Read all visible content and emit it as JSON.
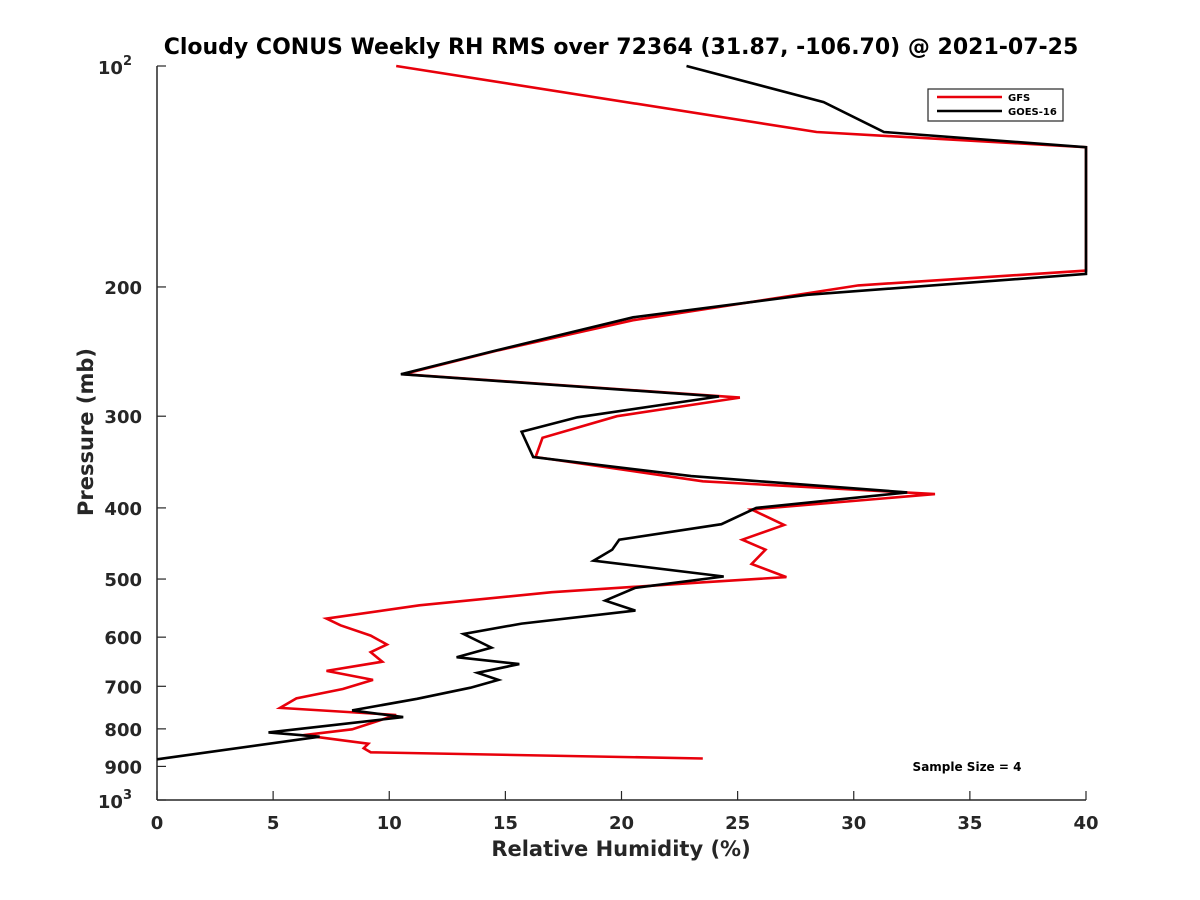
{
  "chart_data": {
    "type": "line",
    "title": "Cloudy CONUS Weekly RH RMS over 72364 (31.87, -106.70) @ 2021-07-25",
    "xlabel": "Relative Humidity (%)",
    "ylabel": "Pressure (mb)",
    "xlim": [
      0,
      40
    ],
    "ylim": [
      1000,
      100
    ],
    "y_scale": "log",
    "y_reversed": true,
    "grid": false,
    "legend_position": "top-right",
    "x_ticks": [
      "0",
      "5",
      "10",
      "15",
      "20",
      "25",
      "30",
      "35",
      "40"
    ],
    "y_ticks": [
      {
        "value": 100,
        "label": "10",
        "sup": "2"
      },
      {
        "value": 200,
        "label": "200"
      },
      {
        "value": 300,
        "label": "300"
      },
      {
        "value": 400,
        "label": "400"
      },
      {
        "value": 500,
        "label": "500"
      },
      {
        "value": 600,
        "label": "600"
      },
      {
        "value": 700,
        "label": "700"
      },
      {
        "value": 800,
        "label": "800"
      },
      {
        "value": 900,
        "label": "900"
      },
      {
        "value": 1000,
        "label": "10",
        "sup": "3"
      }
    ],
    "annotation": "Sample Size = 4",
    "series": [
      {
        "name": "GFS",
        "color": "#e8000b",
        "points": [
          [
            10.3,
            100
          ],
          [
            28.4,
            123
          ],
          [
            40,
            129
          ],
          [
            40,
            190
          ],
          [
            30.2,
            199
          ],
          [
            20.5,
            222
          ],
          [
            14.7,
            244
          ],
          [
            10.6,
            263
          ],
          [
            25.1,
            283
          ],
          [
            19.8,
            300
          ],
          [
            16.6,
            321
          ],
          [
            16.3,
            341
          ],
          [
            23.5,
            368
          ],
          [
            33.5,
            383
          ],
          [
            25.6,
            402
          ],
          [
            27,
            422
          ],
          [
            25.2,
            442
          ],
          [
            26.2,
            456
          ],
          [
            25.6,
            477
          ],
          [
            27.1,
            497
          ],
          [
            23.6,
            505
          ],
          [
            17,
            521
          ],
          [
            11.3,
            543
          ],
          [
            7.3,
            566
          ],
          [
            7.9,
            578
          ],
          [
            9.2,
            597
          ],
          [
            9.9,
            614
          ],
          [
            9.2,
            629
          ],
          [
            9.7,
            648
          ],
          [
            7.3,
            667
          ],
          [
            9.3,
            686
          ],
          [
            8,
            706
          ],
          [
            6,
            727
          ],
          [
            5.3,
            749
          ],
          [
            10.3,
            766
          ],
          [
            8.4,
            801
          ],
          [
            6.3,
            816
          ],
          [
            9.1,
            838
          ],
          [
            8.9,
            850
          ],
          [
            9.2,
            861
          ],
          [
            23.5,
            878
          ]
        ]
      },
      {
        "name": "GOES-16",
        "color": "#000000",
        "points": [
          [
            22.8,
            100
          ],
          [
            28.7,
            112
          ],
          [
            31.3,
            123
          ],
          [
            40,
            129
          ],
          [
            40,
            192
          ],
          [
            28,
            205
          ],
          [
            20.5,
            220
          ],
          [
            14.4,
            245
          ],
          [
            10.5,
            263
          ],
          [
            24.2,
            282
          ],
          [
            18.1,
            301
          ],
          [
            15.7,
            315
          ],
          [
            16.2,
            341
          ],
          [
            23,
            362
          ],
          [
            32.3,
            381
          ],
          [
            25.8,
            400
          ],
          [
            24.3,
            421
          ],
          [
            19.9,
            442
          ],
          [
            19.6,
            456
          ],
          [
            18.8,
            472
          ],
          [
            24.4,
            496
          ],
          [
            20.6,
            514
          ],
          [
            19.3,
            535
          ],
          [
            20.6,
            552
          ],
          [
            15.7,
            575
          ],
          [
            13.2,
            594
          ],
          [
            14.4,
            620
          ],
          [
            12.9,
            639
          ],
          [
            15.6,
            653
          ],
          [
            13.8,
            671
          ],
          [
            14.7,
            686
          ],
          [
            13.5,
            703
          ],
          [
            11.2,
            728
          ],
          [
            8.4,
            755
          ],
          [
            10.6,
            771
          ],
          [
            4.8,
            809
          ],
          [
            7,
            820
          ],
          [
            0,
            880
          ]
        ]
      }
    ]
  }
}
